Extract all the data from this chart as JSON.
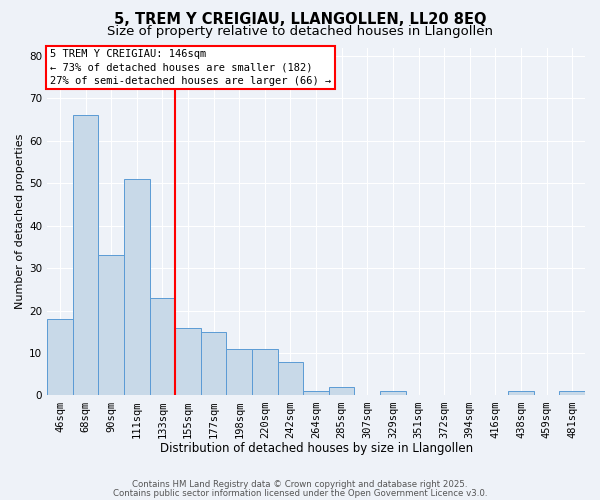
{
  "title1": "5, TREM Y CREIGIAU, LLANGOLLEN, LL20 8EQ",
  "title2": "Size of property relative to detached houses in Llangollen",
  "bar_values": [
    18,
    66,
    33,
    51,
    23,
    16,
    15,
    11,
    11,
    8,
    1,
    2,
    0,
    1,
    0,
    0,
    0,
    0,
    1,
    0,
    1
  ],
  "bin_labels": [
    "46sqm",
    "68sqm",
    "90sqm",
    "111sqm",
    "133sqm",
    "155sqm",
    "177sqm",
    "198sqm",
    "220sqm",
    "242sqm",
    "264sqm",
    "285sqm",
    "307sqm",
    "329sqm",
    "351sqm",
    "372sqm",
    "394sqm",
    "416sqm",
    "438sqm",
    "459sqm",
    "481sqm"
  ],
  "bar_color": "#c8d9e8",
  "bar_edge_color": "#5b9bd5",
  "vline_x_index": 5,
  "vline_color": "red",
  "annotation_lines": [
    "5 TREM Y CREIGIAU: 146sqm",
    "← 73% of detached houses are smaller (182)",
    "27% of semi-detached houses are larger (66) →"
  ],
  "xlabel": "Distribution of detached houses by size in Llangollen",
  "ylabel": "Number of detached properties",
  "ylim": [
    0,
    82
  ],
  "yticks": [
    0,
    10,
    20,
    30,
    40,
    50,
    60,
    70,
    80
  ],
  "footer1": "Contains HM Land Registry data © Crown copyright and database right 2025.",
  "footer2": "Contains public sector information licensed under the Open Government Licence v3.0.",
  "bg_color": "#eef2f8",
  "grid_color": "#ffffff",
  "title_fontsize": 10.5,
  "subtitle_fontsize": 9.5,
  "annot_fontsize": 7.5,
  "xlabel_fontsize": 8.5,
  "ylabel_fontsize": 8,
  "tick_fontsize": 7.5,
  "footer_fontsize": 6.2
}
